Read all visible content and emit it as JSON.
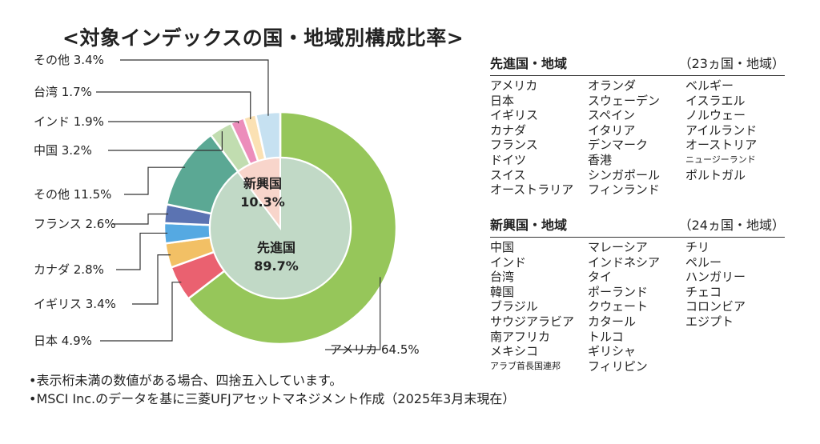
{
  "title": "<対象インデックスの国・地域別構成比率>",
  "chart_data": {
    "type": "pie",
    "title": "<対象インデックスの国・地域別構成比率>",
    "outer": [
      {
        "label": "アメリカ",
        "value": 64.5,
        "text": "アメリカ 64.5%",
        "color": "#96c65a"
      },
      {
        "label": "日本",
        "value": 4.9,
        "text": "日本 4.9%",
        "color": "#ea6170"
      },
      {
        "label": "イギリス",
        "value": 3.4,
        "text": "イギリス 3.4%",
        "color": "#f2c065"
      },
      {
        "label": "カナダ",
        "value": 2.8,
        "text": "カナダ 2.8%",
        "color": "#55a9e2"
      },
      {
        "label": "フランス",
        "value": 2.6,
        "text": "フランス 2.6%",
        "color": "#5b73b2"
      },
      {
        "label": "その他",
        "value": 11.5,
        "text": "その他 11.5%",
        "color": "#5ba894"
      },
      {
        "label": "中国",
        "value": 3.2,
        "text": "中国 3.2%",
        "color": "#c1ddb0"
      },
      {
        "label": "インド",
        "value": 1.9,
        "text": "インド 1.9%",
        "color": "#ec8dbb"
      },
      {
        "label": "台湾",
        "value": 1.7,
        "text": "台湾 1.7%",
        "color": "#fbe1b3"
      },
      {
        "label": "その他",
        "value": 3.4,
        "text": "その他 3.4%",
        "color": "#c6e1f1"
      }
    ],
    "inner": [
      {
        "label": "先進国",
        "value": 89.7,
        "text": "89.7%",
        "color": "#c1d9c6"
      },
      {
        "label": "新興国",
        "value": 10.3,
        "text": "10.3%",
        "color": "#f8d5cb"
      }
    ]
  },
  "developed": {
    "heading": "先進国・地域",
    "count": "（23ヵ国・地域）",
    "columns": [
      [
        "アメリカ",
        "日本",
        "イギリス",
        "カナダ",
        "フランス",
        "ドイツ",
        "スイス",
        "オーストラリア"
      ],
      [
        "オランダ",
        "スウェーデン",
        "スペイン",
        "イタリア",
        "デンマーク",
        "香港",
        "シンガポール",
        "フィンランド"
      ],
      [
        "ベルギー",
        "イスラエル",
        "ノルウェー",
        "アイルランド",
        "オーストリア",
        "ニュージーランド",
        "ポルトガル"
      ]
    ]
  },
  "emerging": {
    "heading": "新興国・地域",
    "count": "（24ヵ国・地域）",
    "columns": [
      [
        "中国",
        "インド",
        "台湾",
        "韓国",
        "ブラジル",
        "サウジアラビア",
        "南アフリカ",
        "メキシコ",
        "アラブ首長国連邦"
      ],
      [
        "マレーシア",
        "インドネシア",
        "タイ",
        "ポーランド",
        "クウェート",
        "カタール",
        "トルコ",
        "ギリシャ",
        "フィリピン"
      ],
      [
        "チリ",
        "ペルー",
        "ハンガリー",
        "チェコ",
        "コロンビア",
        "エジプト"
      ]
    ]
  },
  "notes": [
    "•表示桁未満の数値がある場合、四捨五入しています。",
    "•MSCI Inc.のデータを基に三菱UFJアセットマネジメント作成（2025年3月末現在）"
  ]
}
